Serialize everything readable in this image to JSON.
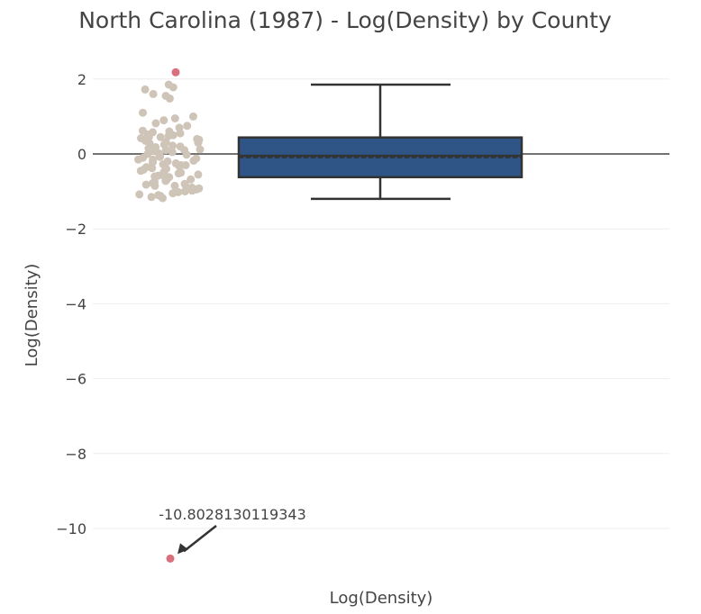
{
  "chart_data": {
    "type": "box",
    "title": "North Carolina (1987) - Log(Density) by County",
    "xlabel": "Log(Density)",
    "ylabel": "Log(Density)",
    "ylim": [
      -11.8,
      2.8
    ],
    "yticks": [
      {
        "value": 2,
        "label": "2"
      },
      {
        "value": 0,
        "label": "0"
      },
      {
        "value": -2,
        "label": "−2"
      },
      {
        "value": -4,
        "label": "−4"
      },
      {
        "value": -6,
        "label": "−6"
      },
      {
        "value": -8,
        "label": "−8"
      },
      {
        "value": -10,
        "label": "−10"
      }
    ],
    "grid": true,
    "box": {
      "q1": -0.62,
      "median": -0.05,
      "mean": -0.1,
      "q3": 0.44,
      "whisker_low": -1.2,
      "whisker_high": 1.85
    },
    "outliers": [
      2.18,
      -10.8028130119343
    ],
    "points": [
      1.85,
      1.78,
      1.72,
      1.6,
      1.55,
      1.48,
      1.1,
      1.0,
      0.95,
      0.9,
      0.82,
      0.75,
      0.7,
      0.62,
      0.6,
      0.58,
      0.55,
      0.52,
      0.5,
      0.48,
      0.45,
      0.42,
      0.4,
      0.38,
      0.35,
      0.32,
      0.3,
      0.28,
      0.25,
      0.22,
      0.2,
      0.18,
      0.15,
      0.12,
      0.1,
      0.08,
      0.05,
      0.02,
      0.0,
      -0.02,
      -0.05,
      -0.08,
      -0.1,
      -0.12,
      -0.15,
      -0.18,
      -0.2,
      -0.22,
      -0.25,
      -0.28,
      -0.3,
      -0.32,
      -0.35,
      -0.38,
      -0.4,
      -0.42,
      -0.45,
      -0.48,
      -0.5,
      -0.52,
      -0.55,
      -0.58,
      -0.6,
      -0.62,
      -0.65,
      -0.68,
      -0.7,
      -0.72,
      -0.75,
      -0.78,
      -0.8,
      -0.82,
      -0.85,
      -0.88,
      -0.9,
      -0.92,
      -0.95,
      -0.98,
      -1.0,
      -1.02,
      -1.05,
      -1.08,
      -1.1,
      -1.12,
      -1.15,
      -1.18,
      -0.3,
      0.1,
      -0.6,
      0.3,
      -0.15,
      0.45,
      -0.85
    ],
    "annotation": {
      "text": "-10.8028130119343",
      "value": -10.8028130119343
    },
    "colors": {
      "box_fill": "#2e5586",
      "box_line": "#333333",
      "points": "#cfc4b8",
      "outliers": "#d9707b",
      "grid": "#eeeeee",
      "zero_line": "#444444",
      "text": "#444444"
    }
  }
}
